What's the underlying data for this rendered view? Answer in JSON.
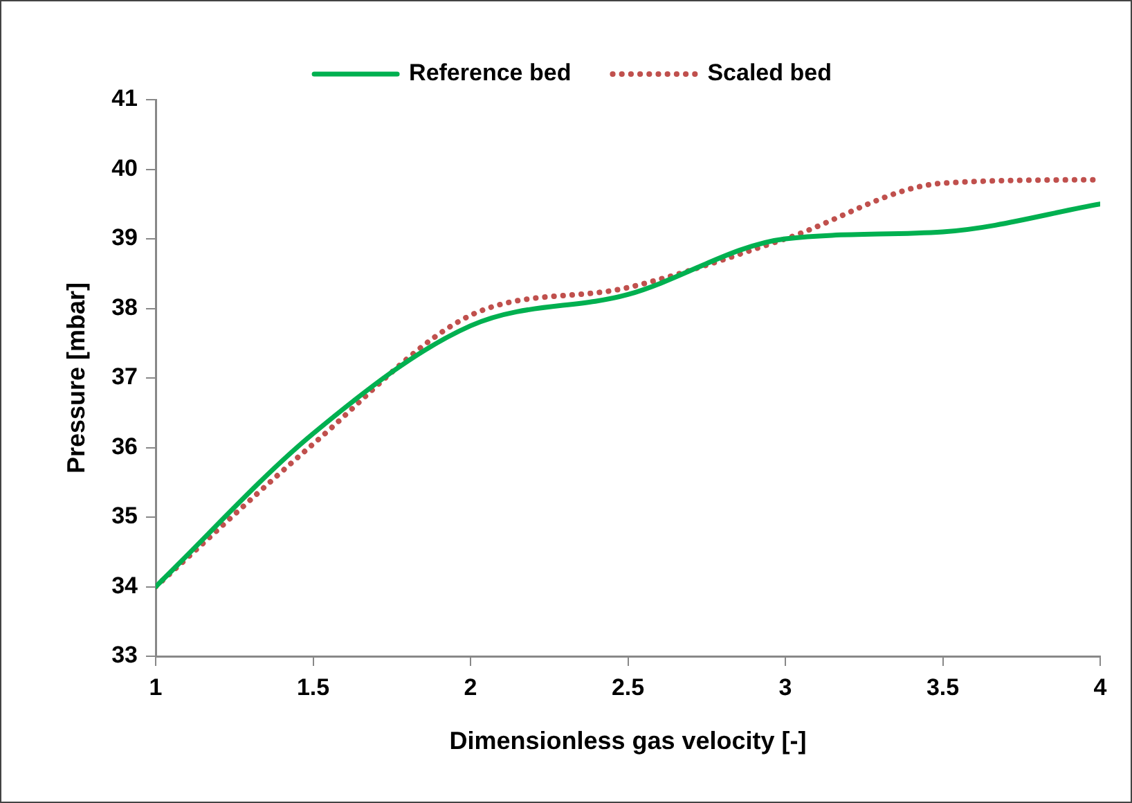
{
  "chart_data": {
    "type": "line",
    "xlabel": "Dimensionless gas velocity [-]",
    "ylabel": "Pressure [mbar]",
    "x": [
      1,
      1.5,
      2,
      2.5,
      3,
      3.5,
      4
    ],
    "series": [
      {
        "name": "Reference bed",
        "color": "#00b050",
        "line_style": "solid",
        "values": [
          34,
          36.2,
          37.75,
          38.2,
          39,
          39.1,
          39.5
        ]
      },
      {
        "name": "Scaled bed",
        "color": "#c0504d",
        "line_style": "dotted",
        "values": [
          34,
          36.05,
          37.9,
          38.3,
          39,
          39.8,
          39.85
        ]
      }
    ],
    "xlim": [
      1,
      4
    ],
    "xticks": [
      1,
      1.5,
      2,
      2.5,
      3,
      3.5,
      4
    ],
    "ylim": [
      33,
      41
    ],
    "yticks": [
      33,
      34,
      35,
      36,
      37,
      38,
      39,
      40,
      41
    ],
    "grid": false,
    "legend": "top",
    "marker": "none"
  }
}
